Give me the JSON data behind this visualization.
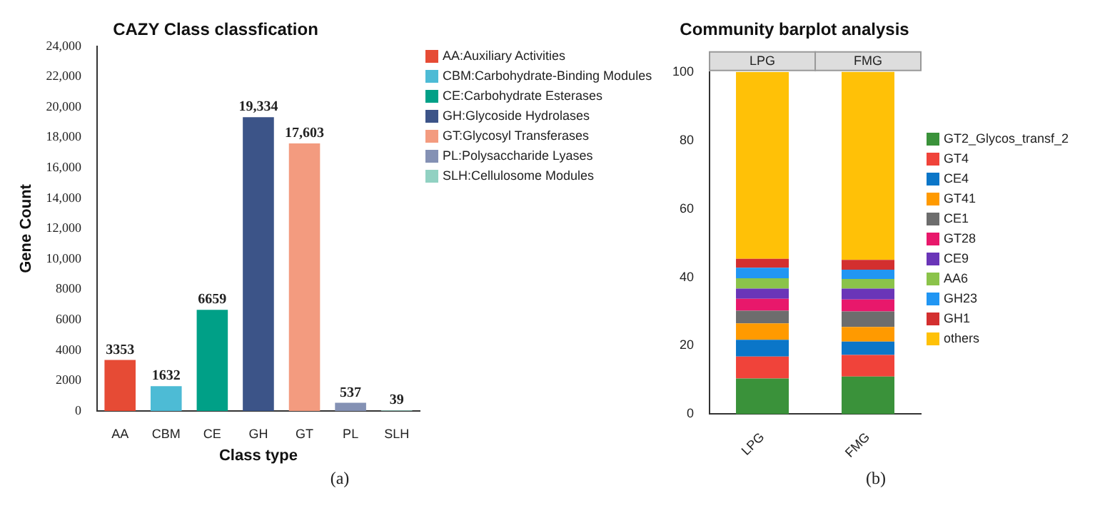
{
  "chart_data": [
    {
      "type": "bar",
      "title": "CAZY Class classfication",
      "xlabel": "Class type",
      "ylabel": "Gene Count",
      "categories": [
        "AA",
        "CBM",
        "CE",
        "GH",
        "GT",
        "PL",
        "SLH"
      ],
      "legend": "top right",
      "grid": false,
      "ylim": [
        0,
        24000
      ],
      "yticks": [
        0,
        2000,
        4000,
        6000,
        8000,
        {
          "value": 10000,
          "label": "10,000"
        },
        {
          "value": 12000,
          "label": "12,000"
        },
        {
          "value": 14000,
          "label": "14,000"
        },
        {
          "value": 16000,
          "label": "16,000"
        },
        {
          "value": 18000,
          "label": "18,000"
        },
        {
          "value": 20000,
          "label": "20,000"
        },
        {
          "value": 22000,
          "label": "22,000"
        },
        {
          "value": 24000,
          "label": "24,000"
        }
      ],
      "annotations": [
        "(a)"
      ],
      "series": [
        {
          "name": "AA:Auxiliary Activities",
          "color": "#e64b35",
          "values": [
            3353,
            null,
            null,
            null,
            null,
            null,
            null
          ],
          "value_labels": [
            "3353",
            null,
            null,
            null,
            null,
            null,
            null
          ]
        },
        {
          "name": "CBM:Carbohydrate-Binding Modules",
          "color": "#4dbbd5",
          "values": [
            null,
            1632,
            null,
            null,
            null,
            null,
            null
          ],
          "value_labels": [
            null,
            "1632",
            null,
            null,
            null,
            null,
            null
          ]
        },
        {
          "name": "CE:Carbohydrate Esterases",
          "color": "#00a087",
          "values": [
            null,
            null,
            6659,
            null,
            null,
            null,
            null
          ],
          "value_labels": [
            null,
            null,
            "6659",
            null,
            null,
            null,
            null
          ]
        },
        {
          "name": "GH:Glycoside Hydrolases",
          "color": "#3c5488",
          "values": [
            null,
            null,
            null,
            19334,
            null,
            null,
            null
          ],
          "value_labels": [
            null,
            null,
            null,
            "19,334",
            null,
            null,
            null
          ]
        },
        {
          "name": "GT:Glycosyl Transferases",
          "color": "#f39b7f",
          "values": [
            null,
            null,
            null,
            null,
            17603,
            null,
            null
          ],
          "value_labels": [
            null,
            null,
            null,
            null,
            "17,603",
            null,
            null
          ]
        },
        {
          "name": "PL:Polysaccharide Lyases",
          "color": "#8491b4",
          "values": [
            null,
            null,
            null,
            null,
            null,
            537,
            null
          ],
          "value_labels": [
            null,
            null,
            null,
            null,
            null,
            "537",
            null
          ]
        },
        {
          "name": "SLH:Cellulosome Modules",
          "color": "#91d1c2",
          "values": [
            null,
            null,
            null,
            null,
            null,
            null,
            39
          ],
          "value_labels": [
            null,
            null,
            null,
            null,
            null,
            null,
            "39"
          ]
        }
      ]
    },
    {
      "type": "bar",
      "title": "Community barplot analysis",
      "categories": [
        "LPG",
        "FMG"
      ],
      "stacked": true,
      "legend": "right",
      "grid": false,
      "ylim": [
        0,
        100
      ],
      "yticks": [
        0,
        20,
        40,
        60,
        80,
        100
      ],
      "annotations": [
        "(b)"
      ],
      "series": [
        {
          "name": "GT2_Glycos_transf_2",
          "color": "#3a923a",
          "values": [
            10.4,
            11.0
          ]
        },
        {
          "name": "GT4",
          "color": "#f0433a",
          "values": [
            6.4,
            6.3
          ]
        },
        {
          "name": "CE4",
          "color": "#0b76c8",
          "values": [
            4.9,
            3.9
          ]
        },
        {
          "name": "GT41",
          "color": "#ff9a00",
          "values": [
            4.8,
            4.3
          ]
        },
        {
          "name": "CE1",
          "color": "#6d6d6d",
          "values": [
            3.7,
            4.5
          ]
        },
        {
          "name": "GT28",
          "color": "#e8186b",
          "values": [
            3.5,
            3.5
          ]
        },
        {
          "name": "CE9",
          "color": "#6a35b8",
          "values": [
            3.0,
            3.2
          ]
        },
        {
          "name": "AA6",
          "color": "#8bc34a",
          "values": [
            3.0,
            2.8
          ]
        },
        {
          "name": "GH23",
          "color": "#2196f3",
          "values": [
            3.1,
            2.7
          ]
        },
        {
          "name": "GH1",
          "color": "#d32f2f",
          "values": [
            2.6,
            2.9
          ]
        },
        {
          "name": "others",
          "color": "#ffc107",
          "values": [
            54.6,
            55.0
          ]
        }
      ]
    }
  ]
}
